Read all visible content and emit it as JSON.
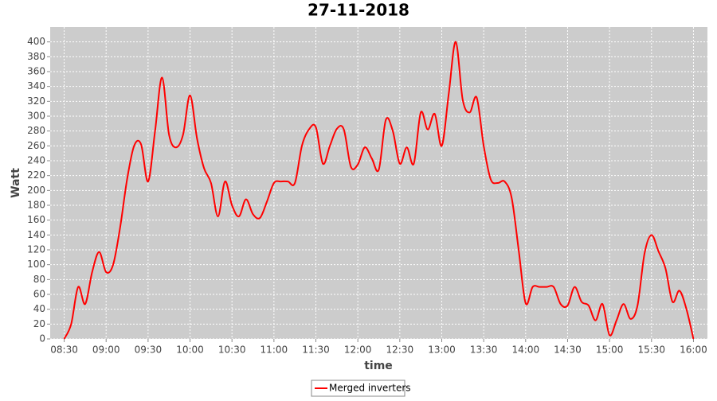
{
  "chart_data": {
    "type": "line",
    "title": "27-11-2018",
    "x_label": "time",
    "y_label": "Watt",
    "x": [
      "08:30",
      "08:35",
      "08:40",
      "08:45",
      "08:50",
      "08:55",
      "09:00",
      "09:05",
      "09:10",
      "09:15",
      "09:20",
      "09:25",
      "09:30",
      "09:35",
      "09:40",
      "09:45",
      "09:50",
      "09:55",
      "10:00",
      "10:05",
      "10:10",
      "10:15",
      "10:20",
      "10:25",
      "10:30",
      "10:35",
      "10:40",
      "10:45",
      "10:50",
      "10:55",
      "11:00",
      "11:05",
      "11:10",
      "11:15",
      "11:20",
      "11:25",
      "11:30",
      "11:35",
      "11:40",
      "11:45",
      "11:50",
      "11:55",
      "12:00",
      "12:05",
      "12:10",
      "12:15",
      "12:20",
      "12:25",
      "12:30",
      "12:35",
      "12:40",
      "12:45",
      "12:50",
      "12:55",
      "13:00",
      "13:05",
      "13:10",
      "13:15",
      "13:20",
      "13:25",
      "13:30",
      "13:35",
      "13:40",
      "13:45",
      "13:50",
      "13:55",
      "14:00",
      "14:05",
      "14:10",
      "14:15",
      "14:20",
      "14:25",
      "14:30",
      "14:35",
      "14:40",
      "14:45",
      "14:50",
      "14:55",
      "15:00",
      "15:05",
      "15:10",
      "15:15",
      "15:20",
      "15:25",
      "15:30",
      "15:35",
      "15:40",
      "15:45",
      "15:50",
      "15:55",
      "16:00"
    ],
    "series": [
      {
        "name": "Merged inverters",
        "color": "#ff0000",
        "values": [
          0,
          20,
          70,
          47,
          90,
          117,
          90,
          100,
          150,
          215,
          260,
          262,
          212,
          280,
          352,
          275,
          258,
          275,
          328,
          270,
          230,
          210,
          165,
          212,
          180,
          165,
          188,
          168,
          163,
          185,
          210,
          212,
          212,
          210,
          260,
          282,
          285,
          236,
          260,
          283,
          282,
          232,
          235,
          258,
          243,
          228,
          295,
          280,
          236,
          258,
          236,
          305,
          282,
          303,
          260,
          330,
          400,
          322,
          305,
          325,
          260,
          215,
          210,
          212,
          190,
          120,
          48,
          70,
          70,
          70,
          70,
          47,
          45,
          70,
          50,
          45,
          25,
          47,
          5,
          25,
          47,
          27,
          45,
          115,
          140,
          118,
          95,
          50,
          65,
          40,
          0
        ]
      }
    ],
    "xlim": [
      "08:20",
      "16:10"
    ],
    "xticks": [
      "08:30",
      "09:00",
      "09:30",
      "10:00",
      "10:30",
      "11:00",
      "11:30",
      "12:00",
      "12:30",
      "13:00",
      "13:30",
      "14:00",
      "14:30",
      "15:00",
      "15:30",
      "16:00"
    ],
    "ylim": [
      0,
      420
    ],
    "yticks": [
      0,
      20,
      40,
      60,
      80,
      100,
      120,
      140,
      160,
      180,
      200,
      220,
      240,
      260,
      280,
      300,
      320,
      340,
      360,
      380,
      400
    ],
    "grid": true,
    "legend": "bottom"
  }
}
